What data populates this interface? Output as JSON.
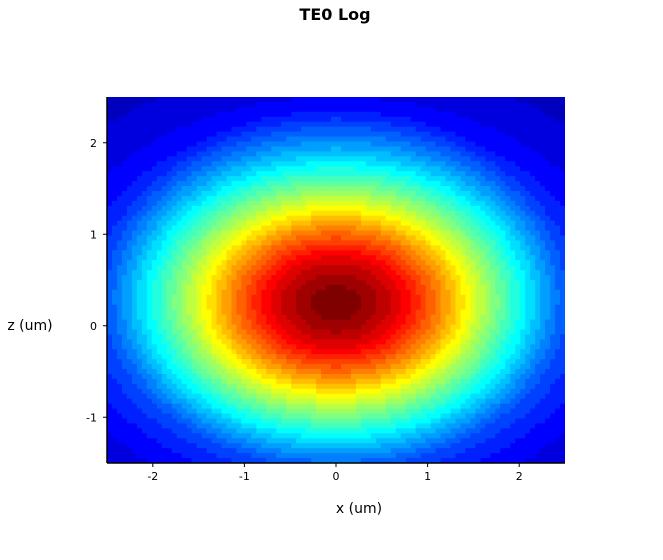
{
  "chart_data": {
    "type": "heatmap",
    "title": "TE0 Log",
    "xlabel": "x (um)",
    "ylabel": "z (um)",
    "xlim": [
      -2.5,
      2.5
    ],
    "ylim": [
      -1.5,
      2.5
    ],
    "xticks": [
      -2,
      -1,
      0,
      1,
      2
    ],
    "yticks": [
      -1,
      0,
      1,
      2
    ],
    "xtick_labels": [
      "-2",
      "-1",
      "0",
      "1",
      "2"
    ],
    "ytick_labels": [
      "-1",
      "0",
      "1",
      "2"
    ],
    "colormap": "jet",
    "grid": false,
    "legend": "none",
    "peak_location": {
      "x": 0.0,
      "z": 0.25
    },
    "field_model": {
      "description": "log-scaled mode intensity, maximum at center, decaying outward",
      "sigma_x": 1.35,
      "sigma_z": 0.95
    }
  }
}
